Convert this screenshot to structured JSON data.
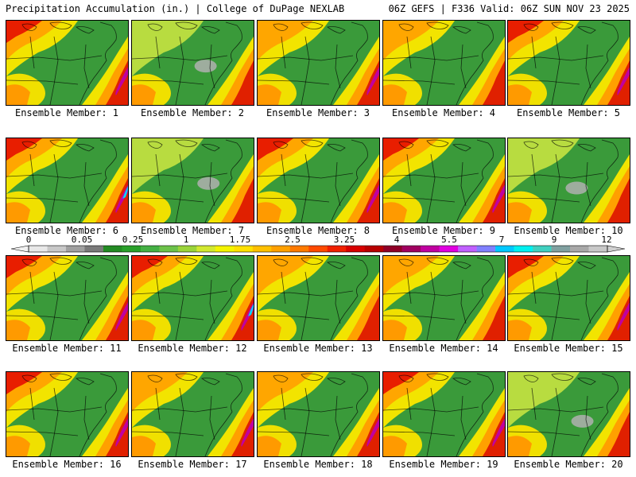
{
  "header": {
    "left_title": "Precipitation Accumulation (in.) | College of DuPage NEXLAB",
    "right_title": "06Z GEFS | F336 Valid: 06Z SUN NOV 23 2025"
  },
  "panels": [
    {
      "label": "Ensemble Member: 1",
      "intensity": 0.62,
      "mode": "wet-north"
    },
    {
      "label": "Ensemble Member: 2",
      "intensity": 0.45,
      "mode": "dry-center"
    },
    {
      "label": "Ensemble Member: 3",
      "intensity": 0.55,
      "mode": "coast"
    },
    {
      "label": "Ensemble Member: 4",
      "intensity": 0.5,
      "mode": "mixed"
    },
    {
      "label": "Ensemble Member: 5",
      "intensity": 0.7,
      "mode": "wet-north"
    },
    {
      "label": "Ensemble Member: 6",
      "intensity": 0.65,
      "mode": "coast"
    },
    {
      "label": "Ensemble Member: 7",
      "intensity": 0.35,
      "mode": "dry-center"
    },
    {
      "label": "Ensemble Member: 8",
      "intensity": 0.7,
      "mode": "wet-north"
    },
    {
      "label": "Ensemble Member: 9",
      "intensity": 0.6,
      "mode": "coast"
    },
    {
      "label": "Ensemble Member: 10",
      "intensity": 0.3,
      "mode": "dry-center"
    },
    {
      "label": "Ensemble Member: 11",
      "intensity": 0.65,
      "mode": "wet-north"
    },
    {
      "label": "Ensemble Member: 12",
      "intensity": 0.7,
      "mode": "coast"
    },
    {
      "label": "Ensemble Member: 13",
      "intensity": 0.5,
      "mode": "mixed"
    },
    {
      "label": "Ensemble Member: 14",
      "intensity": 0.45,
      "mode": "mixed"
    },
    {
      "label": "Ensemble Member: 15",
      "intensity": 0.75,
      "mode": "wet-north"
    },
    {
      "label": "Ensemble Member: 16",
      "intensity": 0.7,
      "mode": "wet-north"
    },
    {
      "label": "Ensemble Member: 17",
      "intensity": 0.55,
      "mode": "coast"
    },
    {
      "label": "Ensemble Member: 18",
      "intensity": 0.55,
      "mode": "coast"
    },
    {
      "label": "Ensemble Member: 19",
      "intensity": 0.6,
      "mode": "mixed"
    },
    {
      "label": "Ensemble Member: 20",
      "intensity": 0.5,
      "mode": "dry-center"
    }
  ],
  "colorbar": {
    "ticks": [
      "0",
      "0.05",
      "0.25",
      "1",
      "1.75",
      "2.5",
      "3.25",
      "4",
      "5.5",
      "7",
      "9",
      "12"
    ],
    "colors": [
      "#e8e8e8",
      "#c8c8c8",
      "#a0a0a0",
      "#7a7a7a",
      "#238b23",
      "#2aa02a",
      "#44b044",
      "#6cc24a",
      "#9ad43a",
      "#d2e830",
      "#f4f400",
      "#ffe000",
      "#ffc000",
      "#ffa000",
      "#ff7a00",
      "#ff4a00",
      "#f02000",
      "#d80000",
      "#b80000",
      "#900028",
      "#a00060",
      "#c000a0",
      "#e000e0",
      "#c060ff",
      "#8080ff",
      "#00c8ff",
      "#00f0f0",
      "#40d0c0",
      "#80a0a0",
      "#a8a8a8",
      "#c8c8c8"
    ]
  }
}
